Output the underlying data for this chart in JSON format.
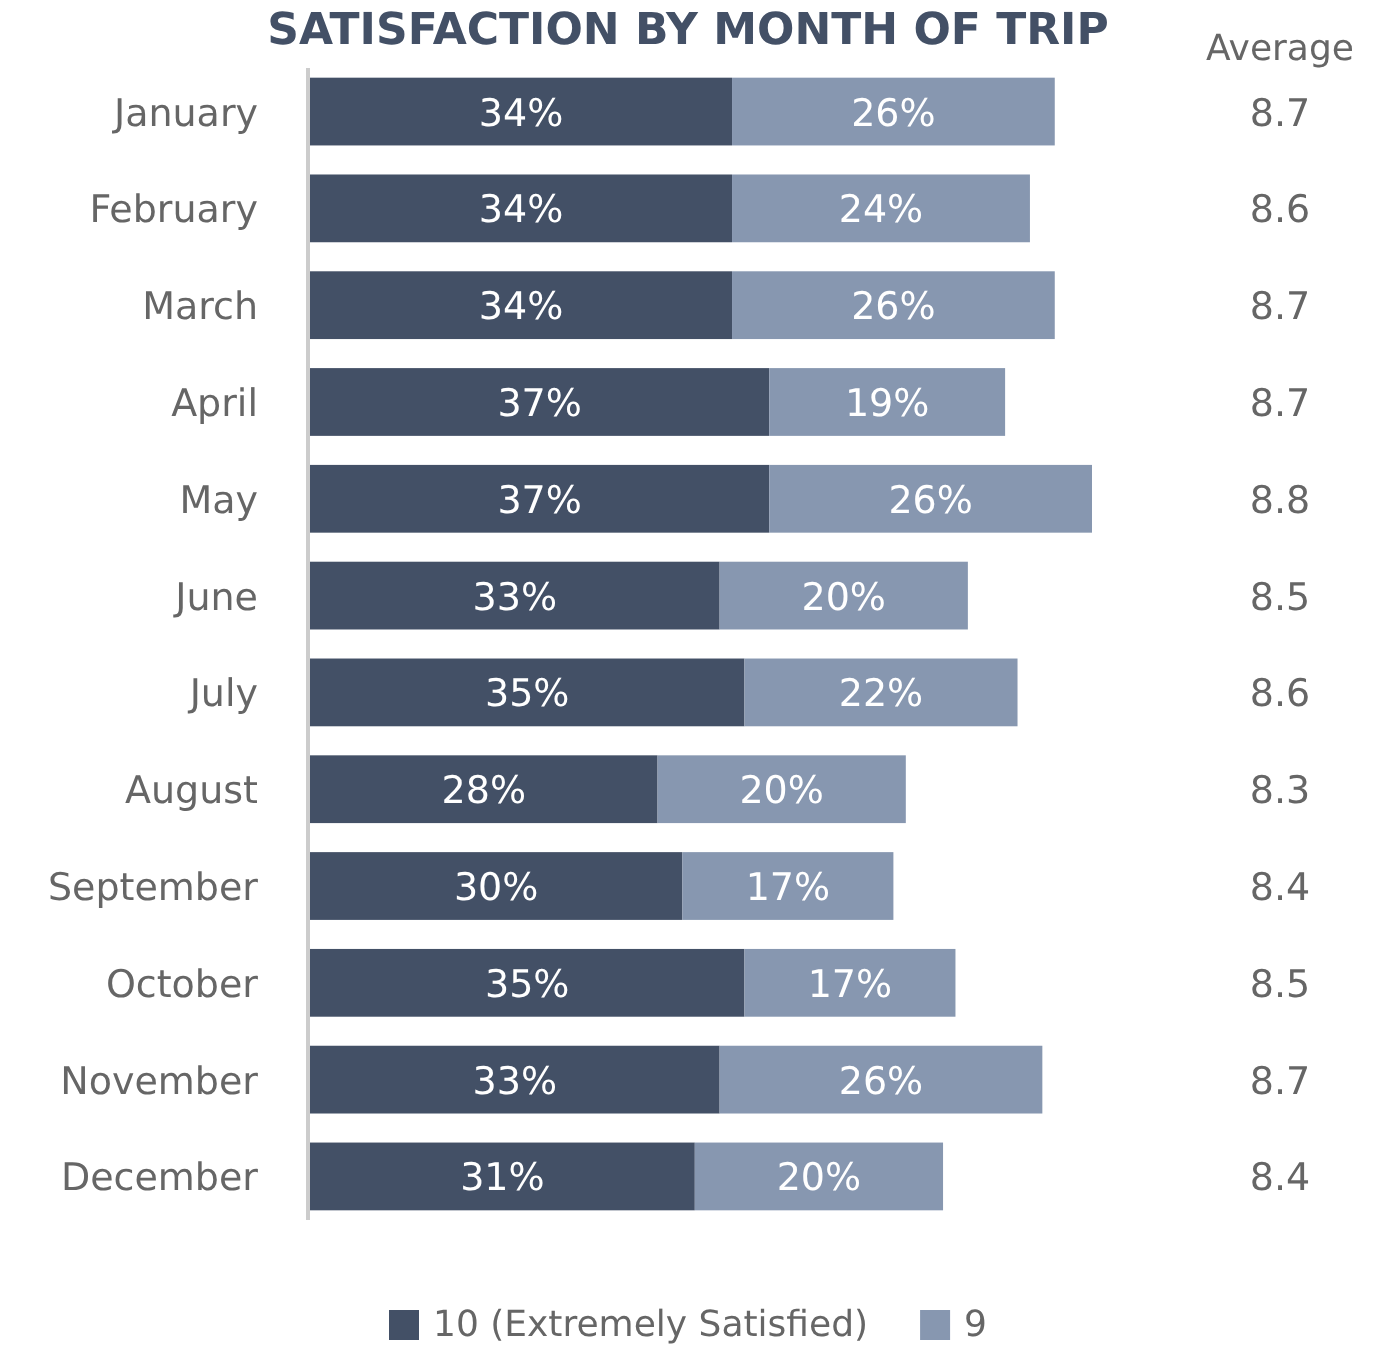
{
  "chart_data": {
    "type": "bar",
    "orientation": "horizontal",
    "stacked": true,
    "title": "SATISFACTION BY MONTH OF TRIP",
    "categories": [
      "January",
      "February",
      "March",
      "April",
      "May",
      "June",
      "July",
      "August",
      "September",
      "October",
      "November",
      "December"
    ],
    "series": [
      {
        "name": "10 (Extremely Satisfied)",
        "color": "#435066",
        "values": [
          34,
          34,
          34,
          37,
          37,
          33,
          35,
          28,
          30,
          35,
          33,
          31
        ],
        "value_labels": [
          "34%",
          "34%",
          "34%",
          "37%",
          "37%",
          "33%",
          "35%",
          "28%",
          "30%",
          "35%",
          "33%",
          "31%"
        ]
      },
      {
        "name": "9",
        "color": "#8797b0",
        "values": [
          26,
          24,
          26,
          19,
          26,
          20,
          22,
          20,
          17,
          17,
          26,
          20
        ],
        "value_labels": [
          "26%",
          "24%",
          "26%",
          "19%",
          "26%",
          "20%",
          "22%",
          "20%",
          "17%",
          "17%",
          "26%",
          "20%"
        ]
      }
    ],
    "legend": "bottom",
    "annotations": [
      "Average",
      "8.7",
      "8.6",
      "8.7",
      "8.7",
      "8.8",
      "8.5",
      "8.6",
      "8.3",
      "8.4",
      "8.5",
      "8.7",
      "8.4"
    ]
  }
}
